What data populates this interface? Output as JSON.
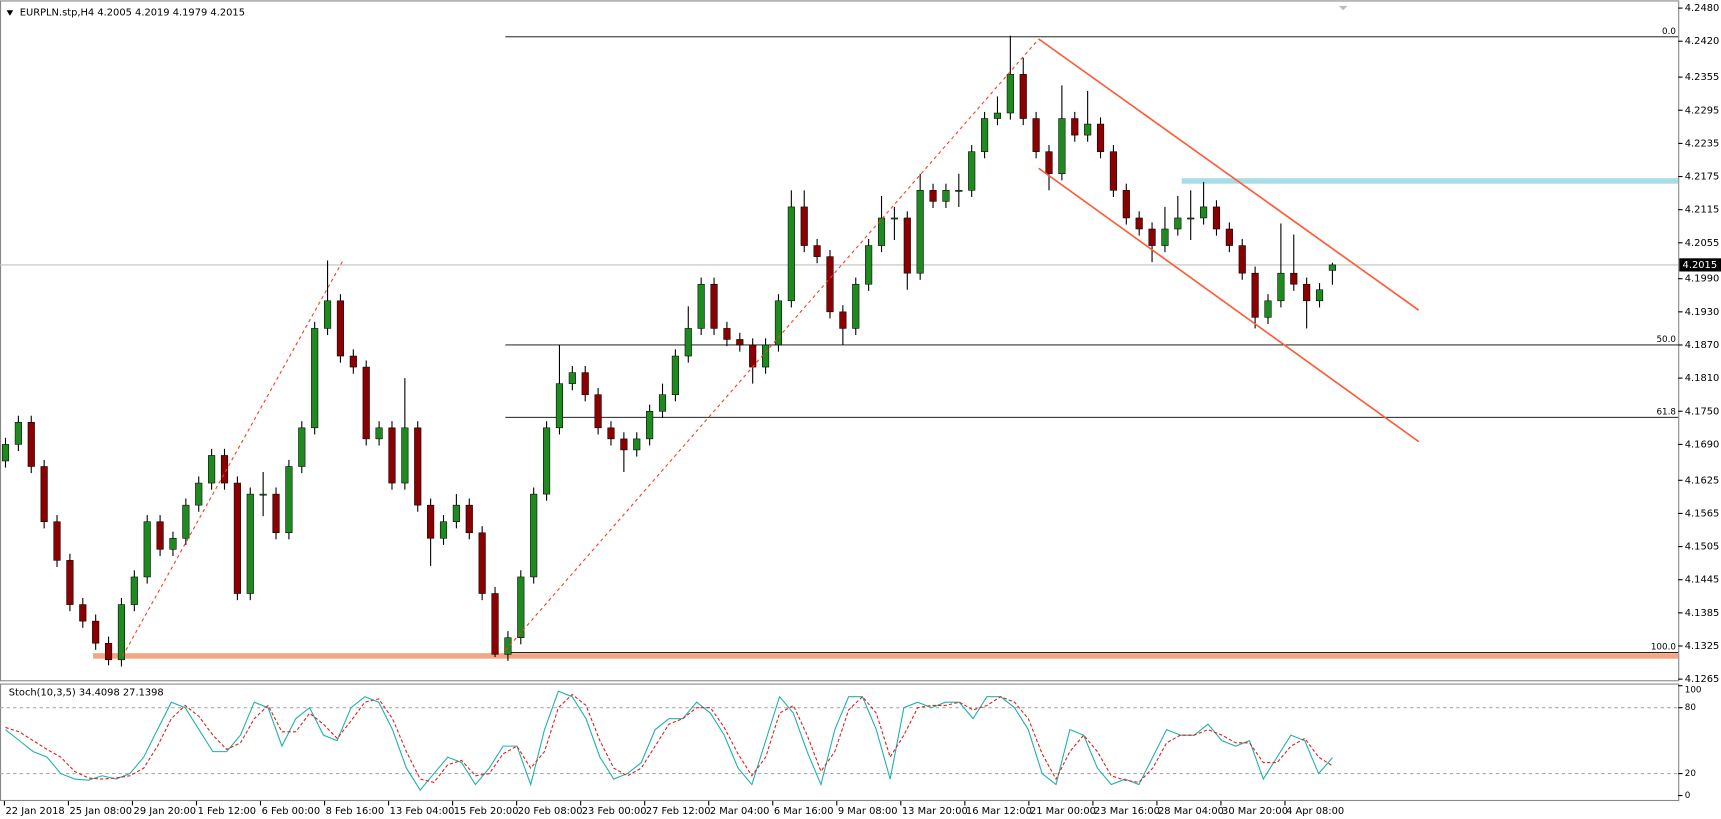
{
  "chart_data": [
    {
      "type": "candlestick",
      "title": "EURPLN.stp,H4  4.2005 4.2019 4.1979 4.2015",
      "bull_color": "#1f8a1f",
      "bear_color": "#8b0000",
      "wick_color": "#000000",
      "ylim": [
        4.1265,
        4.248
      ],
      "yticks": [
        {
          "value": 4.248,
          "label": "4.2480"
        },
        {
          "value": 4.242,
          "label": "4.2420"
        },
        4.2355,
        4.2295,
        4.2235,
        4.2175,
        4.2115,
        4.2055,
        {
          "value": 4.199,
          "label": "4.1990"
        },
        {
          "value": 4.193,
          "label": "4.1930"
        },
        {
          "value": 4.187,
          "label": "4.1870"
        },
        {
          "value": 4.181,
          "label": "4.1810"
        },
        {
          "value": 4.175,
          "label": "4.1750"
        },
        {
          "value": 4.169,
          "label": "4.1690"
        },
        4.1625,
        4.1565,
        4.1505,
        4.1445,
        4.1385,
        4.1325,
        4.1265
      ],
      "x_labels": [
        "22 Jan 2018",
        "25 Jan 08:00",
        "29 Jan 20:00",
        "1 Feb 12:00",
        "6 Feb 00:00",
        "8 Feb 16:00",
        "13 Feb 04:00",
        "15 Feb 20:00",
        "20 Feb 08:00",
        "23 Feb 00:00",
        "27 Feb 12:00",
        "2 Mar 04:00",
        "6 Mar 16:00",
        "9 Mar 08:00",
        "13 Mar 20:00",
        "16 Mar 12:00",
        "21 Mar 00:00",
        "23 Mar 16:00",
        "28 Mar 04:00",
        "30 Mar 20:00",
        "4 Apr 08:00"
      ],
      "current_price": 4.2015,
      "ohlc": [
        [
          4.166,
          4.1702,
          4.1648,
          4.169
        ],
        [
          4.169,
          4.1742,
          4.1678,
          4.173
        ],
        [
          4.173,
          4.1742,
          4.1638,
          4.165
        ],
        [
          4.165,
          4.1662,
          4.1538,
          4.155
        ],
        [
          4.155,
          4.1562,
          4.1468,
          4.148
        ],
        [
          4.148,
          4.1492,
          4.1388,
          4.14
        ],
        [
          4.14,
          4.1412,
          4.1358,
          4.137
        ],
        [
          4.137,
          4.1382,
          4.1318,
          4.133
        ],
        [
          4.133,
          4.1342,
          4.129,
          4.13
        ],
        [
          4.13,
          4.1412,
          4.1288,
          4.14
        ],
        [
          4.14,
          4.1462,
          4.1388,
          4.145
        ],
        [
          4.145,
          4.1562,
          4.1438,
          4.155
        ],
        [
          4.155,
          4.1562,
          4.1488,
          4.15
        ],
        [
          4.15,
          4.1532,
          4.1488,
          4.152
        ],
        [
          4.152,
          4.1592,
          4.1508,
          4.158
        ],
        [
          4.158,
          4.1632,
          4.1568,
          4.162
        ],
        [
          4.162,
          4.1682,
          4.1608,
          4.167
        ],
        [
          4.167,
          4.1682,
          4.1608,
          4.162
        ],
        [
          4.162,
          4.1632,
          4.1408,
          4.142
        ],
        [
          4.142,
          4.1612,
          4.1408,
          4.16
        ],
        [
          4.16,
          4.164,
          4.156,
          4.16
        ],
        [
          4.16,
          4.1612,
          4.1518,
          4.153
        ],
        [
          4.153,
          4.1662,
          4.1518,
          4.165
        ],
        [
          4.165,
          4.1732,
          4.1638,
          4.172
        ],
        [
          4.172,
          4.1912,
          4.1708,
          4.19
        ],
        [
          4.19,
          4.2023,
          4.1888,
          4.195
        ],
        [
          4.195,
          4.1962,
          4.1838,
          4.185
        ],
        [
          4.185,
          4.1862,
          4.1818,
          4.183
        ],
        [
          4.183,
          4.1842,
          4.1688,
          4.17
        ],
        [
          4.17,
          4.1732,
          4.1688,
          4.172
        ],
        [
          4.172,
          4.1732,
          4.1608,
          4.162
        ],
        [
          4.162,
          4.181,
          4.1608,
          4.172
        ],
        [
          4.172,
          4.1732,
          4.1568,
          4.158
        ],
        [
          4.158,
          4.1592,
          4.147,
          4.152
        ],
        [
          4.152,
          4.1562,
          4.1508,
          4.155
        ],
        [
          4.155,
          4.16,
          4.1538,
          4.158
        ],
        [
          4.158,
          4.1592,
          4.1518,
          4.153
        ],
        [
          4.153,
          4.1542,
          4.1408,
          4.142
        ],
        [
          4.142,
          4.1432,
          4.1305,
          4.131
        ],
        [
          4.131,
          4.1352,
          4.1298,
          4.134
        ],
        [
          4.134,
          4.1462,
          4.1328,
          4.145
        ],
        [
          4.145,
          4.1612,
          4.1438,
          4.16
        ],
        [
          4.16,
          4.1732,
          4.1588,
          4.172
        ],
        [
          4.172,
          4.187,
          4.1708,
          4.18
        ],
        [
          4.18,
          4.1832,
          4.1788,
          4.182
        ],
        [
          4.182,
          4.1832,
          4.1768,
          4.178
        ],
        [
          4.178,
          4.1792,
          4.1708,
          4.172
        ],
        [
          4.172,
          4.1732,
          4.1688,
          4.17
        ],
        [
          4.17,
          4.1712,
          4.164,
          4.168
        ],
        [
          4.168,
          4.1712,
          4.1668,
          4.17
        ],
        [
          4.17,
          4.1762,
          4.1688,
          4.175
        ],
        [
          4.175,
          4.18,
          4.1738,
          4.178
        ],
        [
          4.178,
          4.1862,
          4.1768,
          4.185
        ],
        [
          4.185,
          4.194,
          4.1838,
          4.19
        ],
        [
          4.19,
          4.1992,
          4.1888,
          4.198
        ],
        [
          4.198,
          4.1992,
          4.1888,
          4.19
        ],
        [
          4.19,
          4.1912,
          4.1868,
          4.188
        ],
        [
          4.188,
          4.1892,
          4.1858,
          4.187
        ],
        [
          4.187,
          4.1882,
          4.18,
          4.183
        ],
        [
          4.183,
          4.1882,
          4.1818,
          4.187
        ],
        [
          4.187,
          4.1962,
          4.1858,
          4.195
        ],
        [
          4.195,
          4.215,
          4.1938,
          4.212
        ],
        [
          4.212,
          4.215,
          4.2038,
          4.205
        ],
        [
          4.205,
          4.2062,
          4.2018,
          4.203
        ],
        [
          4.203,
          4.2042,
          4.1918,
          4.193
        ],
        [
          4.193,
          4.1942,
          4.187,
          4.19
        ],
        [
          4.19,
          4.1992,
          4.1888,
          4.198
        ],
        [
          4.198,
          4.2062,
          4.1968,
          4.205
        ],
        [
          4.205,
          4.214,
          4.2038,
          4.21
        ],
        [
          4.21,
          4.212,
          4.206,
          4.21
        ],
        [
          4.21,
          4.2112,
          4.197,
          4.2
        ],
        [
          4.2,
          4.218,
          4.1988,
          4.215
        ],
        [
          4.215,
          4.2162,
          4.2118,
          4.213
        ],
        [
          4.213,
          4.2162,
          4.2118,
          4.215
        ],
        [
          4.215,
          4.218,
          4.212,
          4.215
        ],
        [
          4.215,
          4.2232,
          4.2138,
          4.222
        ],
        [
          4.222,
          4.2292,
          4.2208,
          4.228
        ],
        [
          4.228,
          4.232,
          4.2268,
          4.229
        ],
        [
          4.229,
          4.243,
          4.2278,
          4.236
        ],
        [
          4.236,
          4.239,
          4.2268,
          4.228
        ],
        [
          4.228,
          4.2292,
          4.2208,
          4.222
        ],
        [
          4.222,
          4.2232,
          4.215,
          4.218
        ],
        [
          4.218,
          4.234,
          4.2168,
          4.228
        ],
        [
          4.228,
          4.2292,
          4.2238,
          4.225
        ],
        [
          4.225,
          4.233,
          4.2238,
          4.227
        ],
        [
          4.227,
          4.2282,
          4.2208,
          4.222
        ],
        [
          4.222,
          4.2232,
          4.2138,
          4.215
        ],
        [
          4.215,
          4.2162,
          4.2088,
          4.21
        ],
        [
          4.21,
          4.2112,
          4.2068,
          4.208
        ],
        [
          4.208,
          4.2092,
          4.202,
          4.205
        ],
        [
          4.205,
          4.212,
          4.2038,
          4.208
        ],
        [
          4.208,
          4.214,
          4.2068,
          4.21
        ],
        [
          4.21,
          4.215,
          4.206,
          4.21
        ],
        [
          4.21,
          4.2165,
          4.2088,
          4.212
        ],
        [
          4.212,
          4.2132,
          4.2068,
          4.208
        ],
        [
          4.208,
          4.2092,
          4.2038,
          4.205
        ],
        [
          4.205,
          4.2062,
          4.1988,
          4.2
        ],
        [
          4.2,
          4.2012,
          4.19,
          4.192
        ],
        [
          4.192,
          4.1962,
          4.1908,
          4.195
        ],
        [
          4.195,
          4.209,
          4.1938,
          4.2
        ],
        [
          4.2,
          4.207,
          4.1968,
          4.198
        ],
        [
          4.198,
          4.1992,
          4.19,
          4.195
        ],
        [
          4.195,
          4.1982,
          4.1938,
          4.197
        ],
        [
          4.2005,
          4.2019,
          4.1979,
          4.2015
        ]
      ],
      "fib_start": 38.8,
      "fib_levels": [
        {
          "label": "0.0",
          "price": 4.2428
        },
        {
          "label": "50.0",
          "price": 4.187
        },
        {
          "label": "61.8",
          "price": 4.1739
        },
        {
          "label": "100.0",
          "price": 4.1313
        }
      ],
      "trend_lines": [
        {
          "x": [
            9.1,
            26.2
          ],
          "y": [
            4.1307,
            4.2023
          ],
          "color": "#ff3b1f",
          "dashed": true
        },
        {
          "x": [
            38.8,
            80.2
          ],
          "y": [
            4.1317,
            4.2424
          ],
          "color": "#ff3b1f",
          "dashed": true
        },
        {
          "x": [
            80.2,
            109.7
          ],
          "y": [
            4.2424,
            4.1933
          ],
          "color": "#ff5a36",
          "dashed": false
        },
        {
          "x": [
            80.2,
            109.7
          ],
          "y": [
            4.219,
            4.1695
          ],
          "color": "#ff5a36",
          "dashed": false
        }
      ],
      "zones": [
        {
          "x": 6.8,
          "price": 4.1307,
          "color": "#f4a582"
        },
        {
          "x": 91.3,
          "price": 4.2167,
          "color": "#a8dce6"
        }
      ]
    },
    {
      "type": "line",
      "title": "Stoch(10,3,5) 34.4098 27.1398",
      "ylim": [
        0,
        100
      ],
      "yticks": [
        100,
        80,
        20,
        0
      ],
      "series": [
        {
          "color": "#20b2aa",
          "dashed": false,
          "values": [
            60,
            50,
            40,
            35,
            20,
            15,
            14,
            18,
            15,
            20,
            35,
            60,
            85,
            80,
            60,
            40,
            40,
            55,
            85,
            80,
            45,
            70,
            80,
            55,
            50,
            80,
            90,
            85,
            60,
            25,
            5,
            20,
            35,
            30,
            10,
            25,
            45,
            45,
            10,
            60,
            95,
            90,
            70,
            35,
            15,
            20,
            30,
            60,
            70,
            70,
            85,
            75,
            55,
            25,
            10,
            50,
            90,
            75,
            40,
            10,
            60,
            90,
            90,
            60,
            15,
            80,
            85,
            80,
            85,
            85,
            70,
            90,
            90,
            80,
            60,
            20,
            10,
            60,
            55,
            25,
            10,
            15,
            10,
            35,
            60,
            55,
            55,
            65,
            50,
            45,
            50,
            15,
            35,
            55,
            50,
            20,
            34.4098
          ]
        },
        {
          "color": "#e0201b",
          "dashed": true,
          "values": [
            62,
            58,
            50,
            42,
            35,
            22,
            16,
            15,
            16,
            18,
            25,
            45,
            70,
            82,
            72,
            55,
            42,
            48,
            70,
            82,
            58,
            58,
            75,
            65,
            52,
            68,
            85,
            88,
            70,
            40,
            15,
            12,
            28,
            32,
            18,
            20,
            38,
            45,
            25,
            40,
            80,
            92,
            82,
            50,
            25,
            18,
            25,
            45,
            65,
            70,
            80,
            80,
            62,
            38,
            18,
            35,
            75,
            82,
            55,
            22,
            40,
            78,
            90,
            75,
            35,
            55,
            80,
            82,
            82,
            85,
            78,
            82,
            90,
            85,
            70,
            38,
            15,
            40,
            55,
            40,
            18,
            14,
            12,
            25,
            48,
            55,
            55,
            60,
            55,
            48,
            48,
            30,
            30,
            45,
            52,
            35,
            27.1398
          ]
        }
      ]
    }
  ]
}
